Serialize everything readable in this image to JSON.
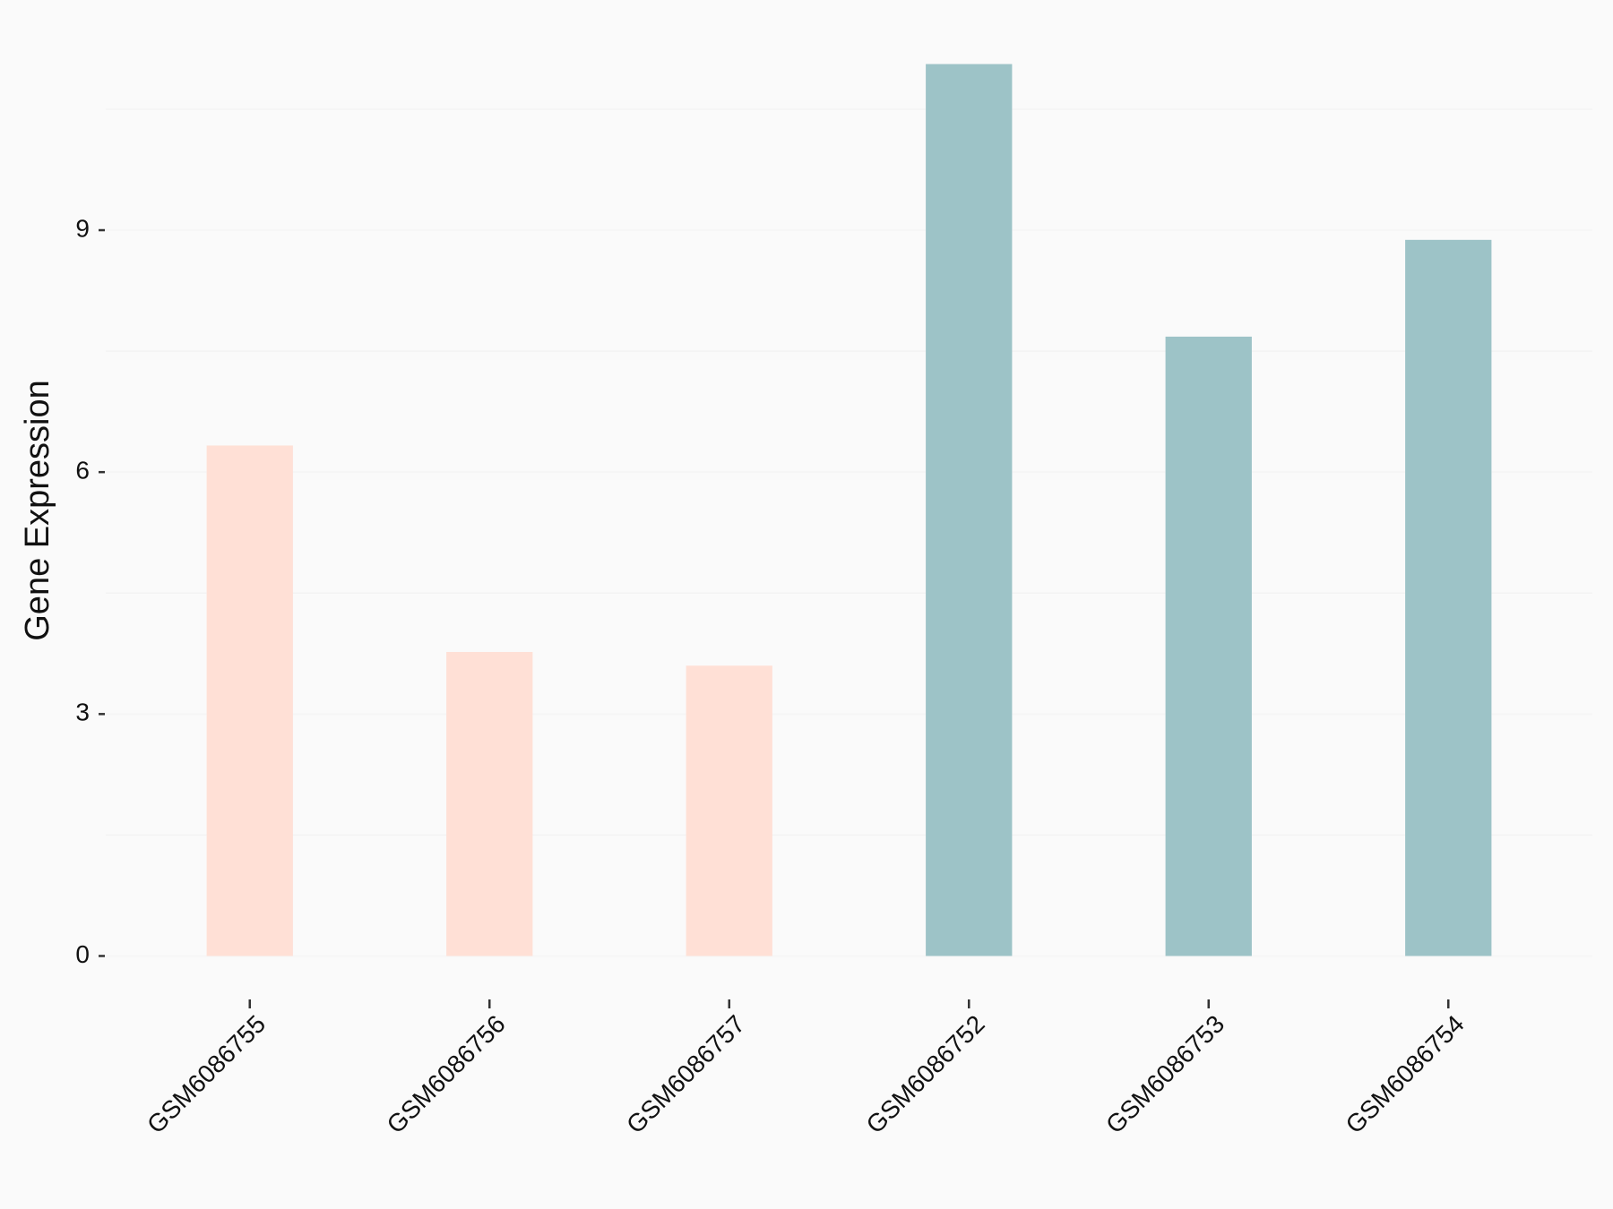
{
  "chart_data": {
    "type": "bar",
    "y_label": "Gene Expression",
    "categories": [
      "GSM6086755",
      "GSM6086756",
      "GSM6086757",
      "GSM6086752",
      "GSM6086753",
      "GSM6086754"
    ],
    "values": [
      6.33,
      3.77,
      3.6,
      11.06,
      7.68,
      8.88
    ],
    "colors": [
      "#FFE0D6",
      "#FFE0D6",
      "#FFE0D6",
      "#9DC3C7",
      "#9DC3C7",
      "#9DC3C7"
    ],
    "ylim": [
      -0.55,
      11.61
    ],
    "yticks": [
      0,
      3,
      6,
      9
    ],
    "minor_yticks": [
      1.5,
      4.5,
      7.5,
      10.5
    ],
    "grid": true
  }
}
